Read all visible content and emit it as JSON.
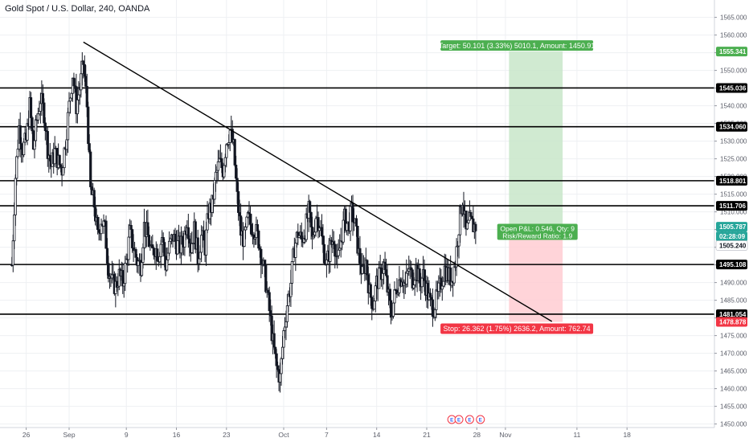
{
  "header": {
    "title": "Gold Spot / U.S. Dollar, 240, OANDA"
  },
  "colors": {
    "up": "#26a69a",
    "down": "#ef5350",
    "candle": "#131722",
    "target": "#4caf50",
    "target_fill": "#c8e6c9",
    "stop": "#f23645",
    "stop_fill": "#ffcdd2",
    "price_tag": "#26a69a",
    "grid": "#eef0f3"
  },
  "chart_data": {
    "type": "candlestick",
    "ylim": [
      1449,
      1569
    ],
    "y_ticks": [
      1450,
      1455,
      1460,
      1465,
      1470,
      1475,
      1480,
      1485,
      1490,
      1495,
      1500,
      1505,
      1510,
      1515,
      1520,
      1525,
      1530,
      1535,
      1540,
      1545,
      1550,
      1555,
      1560,
      1565
    ],
    "y_tick_labels": [
      "1450.000",
      "1455.000",
      "1460.000",
      "1465.000",
      "1470.000",
      "1475.000",
      "1480.000",
      "1485.000",
      "1490.000",
      "1495.000",
      "1500.000",
      "1505.000",
      "1510.000",
      "1515.000",
      "1520.000",
      "1525.000",
      "1530.000",
      "1535.000",
      "1540.000",
      "1545.000",
      "1550.000",
      "1555.000",
      "1560.000",
      "1565.000"
    ],
    "x_ticks": [
      {
        "label": "26",
        "day": -6
      },
      {
        "label": "Sep",
        "day": 0
      },
      {
        "label": "9",
        "day": 8
      },
      {
        "label": "16",
        "day": 15
      },
      {
        "label": "23",
        "day": 22
      },
      {
        "label": "Oct",
        "day": 30
      },
      {
        "label": "7",
        "day": 36
      },
      {
        "label": "14",
        "day": 43
      },
      {
        "label": "21",
        "day": 50
      },
      {
        "label": "28",
        "day": 57
      },
      {
        "label": "Nov",
        "day": 61
      },
      {
        "label": "11",
        "day": 71
      },
      {
        "label": "18",
        "day": 78
      }
    ],
    "price_series": [
      {
        "day": -8.0,
        "price": 1495
      },
      {
        "day": -7.5,
        "price": 1520
      },
      {
        "day": -7.0,
        "price": 1534
      },
      {
        "day": -6.5,
        "price": 1528
      },
      {
        "day": -6.0,
        "price": 1530
      },
      {
        "day": -5.5,
        "price": 1540
      },
      {
        "day": -5.0,
        "price": 1528
      },
      {
        "day": -4.5,
        "price": 1536
      },
      {
        "day": -4.0,
        "price": 1542
      },
      {
        "day": -3.5,
        "price": 1538
      },
      {
        "day": -3.0,
        "price": 1528
      },
      {
        "day": -2.5,
        "price": 1523
      },
      {
        "day": -2.0,
        "price": 1527
      },
      {
        "day": -1.5,
        "price": 1524
      },
      {
        "day": -1.0,
        "price": 1522
      },
      {
        "day": -0.5,
        "price": 1530
      },
      {
        "day": 0.0,
        "price": 1540
      },
      {
        "day": 0.5,
        "price": 1549
      },
      {
        "day": 1.0,
        "price": 1540
      },
      {
        "day": 1.5,
        "price": 1545
      },
      {
        "day": 2.0,
        "price": 1552
      },
      {
        "day": 2.5,
        "price": 1540
      },
      {
        "day": 3.0,
        "price": 1516
      },
      {
        "day": 3.5,
        "price": 1512
      },
      {
        "day": 4.0,
        "price": 1503
      },
      {
        "day": 4.5,
        "price": 1508
      },
      {
        "day": 5.0,
        "price": 1505
      },
      {
        "day": 5.5,
        "price": 1494
      },
      {
        "day": 6.0,
        "price": 1490
      },
      {
        "day": 6.5,
        "price": 1489
      },
      {
        "day": 7.0,
        "price": 1492
      },
      {
        "day": 7.5,
        "price": 1490
      },
      {
        "day": 8.0,
        "price": 1496
      },
      {
        "day": 8.5,
        "price": 1504
      },
      {
        "day": 9.0,
        "price": 1500
      },
      {
        "day": 9.5,
        "price": 1496
      },
      {
        "day": 10.0,
        "price": 1495
      },
      {
        "day": 10.5,
        "price": 1506
      },
      {
        "day": 11.0,
        "price": 1503
      },
      {
        "day": 11.5,
        "price": 1498
      },
      {
        "day": 12.0,
        "price": 1500
      },
      {
        "day": 12.5,
        "price": 1498
      },
      {
        "day": 13.0,
        "price": 1503
      },
      {
        "day": 13.5,
        "price": 1495
      },
      {
        "day": 14.0,
        "price": 1500
      },
      {
        "day": 14.5,
        "price": 1503
      },
      {
        "day": 15.0,
        "price": 1501
      },
      {
        "day": 15.5,
        "price": 1500
      },
      {
        "day": 16.0,
        "price": 1502
      },
      {
        "day": 16.5,
        "price": 1508
      },
      {
        "day": 17.0,
        "price": 1500
      },
      {
        "day": 17.5,
        "price": 1505
      },
      {
        "day": 18.0,
        "price": 1497
      },
      {
        "day": 18.5,
        "price": 1503
      },
      {
        "day": 19.0,
        "price": 1500
      },
      {
        "day": 19.5,
        "price": 1510
      },
      {
        "day": 20.0,
        "price": 1512
      },
      {
        "day": 20.5,
        "price": 1520
      },
      {
        "day": 21.0,
        "price": 1524
      },
      {
        "day": 21.5,
        "price": 1522
      },
      {
        "day": 22.0,
        "price": 1530
      },
      {
        "day": 22.5,
        "price": 1533
      },
      {
        "day": 23.0,
        "price": 1528
      },
      {
        "day": 23.5,
        "price": 1514
      },
      {
        "day": 24.0,
        "price": 1504
      },
      {
        "day": 24.5,
        "price": 1502
      },
      {
        "day": 25.0,
        "price": 1508
      },
      {
        "day": 25.5,
        "price": 1506
      },
      {
        "day": 26.0,
        "price": 1505
      },
      {
        "day": 26.5,
        "price": 1502
      },
      {
        "day": 27.0,
        "price": 1496
      },
      {
        "day": 27.5,
        "price": 1490
      },
      {
        "day": 28.0,
        "price": 1482
      },
      {
        "day": 28.5,
        "price": 1473
      },
      {
        "day": 29.0,
        "price": 1466
      },
      {
        "day": 29.5,
        "price": 1463
      },
      {
        "day": 30.0,
        "price": 1476
      },
      {
        "day": 30.5,
        "price": 1484
      },
      {
        "day": 31.0,
        "price": 1490
      },
      {
        "day": 31.5,
        "price": 1500
      },
      {
        "day": 32.0,
        "price": 1504
      },
      {
        "day": 32.5,
        "price": 1502
      },
      {
        "day": 33.0,
        "price": 1505
      },
      {
        "day": 33.5,
        "price": 1510
      },
      {
        "day": 34.0,
        "price": 1502
      },
      {
        "day": 34.5,
        "price": 1509
      },
      {
        "day": 35.0,
        "price": 1507
      },
      {
        "day": 35.5,
        "price": 1500
      },
      {
        "day": 36.0,
        "price": 1495
      },
      {
        "day": 36.5,
        "price": 1500
      },
      {
        "day": 37.0,
        "price": 1503
      },
      {
        "day": 37.5,
        "price": 1495
      },
      {
        "day": 38.0,
        "price": 1502
      },
      {
        "day": 38.5,
        "price": 1508
      },
      {
        "day": 39.0,
        "price": 1506
      },
      {
        "day": 39.5,
        "price": 1510
      },
      {
        "day": 40.0,
        "price": 1506
      },
      {
        "day": 40.5,
        "price": 1498
      },
      {
        "day": 41.0,
        "price": 1492
      },
      {
        "day": 41.5,
        "price": 1496
      },
      {
        "day": 42.0,
        "price": 1487
      },
      {
        "day": 42.5,
        "price": 1484
      },
      {
        "day": 43.0,
        "price": 1490
      },
      {
        "day": 43.5,
        "price": 1492
      },
      {
        "day": 44.0,
        "price": 1495
      },
      {
        "day": 44.5,
        "price": 1488
      },
      {
        "day": 45.0,
        "price": 1481
      },
      {
        "day": 45.5,
        "price": 1486
      },
      {
        "day": 46.0,
        "price": 1490
      },
      {
        "day": 46.5,
        "price": 1492
      },
      {
        "day": 47.0,
        "price": 1489
      },
      {
        "day": 47.5,
        "price": 1494
      },
      {
        "day": 48.0,
        "price": 1491
      },
      {
        "day": 48.5,
        "price": 1494
      },
      {
        "day": 49.0,
        "price": 1490
      },
      {
        "day": 49.5,
        "price": 1492
      },
      {
        "day": 50.0,
        "price": 1488
      },
      {
        "day": 50.5,
        "price": 1484
      },
      {
        "day": 51.0,
        "price": 1483
      },
      {
        "day": 51.5,
        "price": 1486
      },
      {
        "day": 52.0,
        "price": 1490
      },
      {
        "day": 52.5,
        "price": 1494
      },
      {
        "day": 53.0,
        "price": 1492
      },
      {
        "day": 53.5,
        "price": 1491
      },
      {
        "day": 54.0,
        "price": 1496
      },
      {
        "day": 54.5,
        "price": 1506
      },
      {
        "day": 55.0,
        "price": 1514
      },
      {
        "day": 55.5,
        "price": 1504
      },
      {
        "day": 56.0,
        "price": 1507
      },
      {
        "day": 56.5,
        "price": 1506
      },
      {
        "day": 57.0,
        "price": 1506
      }
    ],
    "horizontal_levels": [
      1545.036,
      1534.06,
      1518.801,
      1511.706,
      1495.108,
      1481.054
    ],
    "trendline": {
      "x1": 2.0,
      "y1": 1558,
      "x2": 67.5,
      "y2": 1479
    },
    "position": {
      "entry": 1505.24,
      "target": 1555.341,
      "stop": 1478.878,
      "x_start": 61.5,
      "x_end": 69.0,
      "target_label": "Target: 50.101 (3.33%) 5010.1, Amount: 1450.91",
      "stop_label": "Stop: 26.362 (1.75%) 2636.2, Amount: 762.74",
      "pnl_label": "Open P&L: 0.546, Qty: 9",
      "rr_label": "Risk/Reward Ratio: 1.9"
    },
    "axis_tags": [
      {
        "value": 1555.341,
        "label": "1555.341",
        "kind": "target"
      },
      {
        "value": 1545.036,
        "label": "1545.036",
        "kind": "level"
      },
      {
        "value": 1534.06,
        "label": "1534.060",
        "kind": "level"
      },
      {
        "value": 1518.801,
        "label": "1518.801",
        "kind": "level"
      },
      {
        "value": 1511.706,
        "label": "1511.706",
        "kind": "level"
      },
      {
        "value": 1505.787,
        "label": "1505.787",
        "kind": "price"
      },
      {
        "value": 1505.787,
        "label": "02:28:09",
        "kind": "timer"
      },
      {
        "value": 1505.24,
        "label": "1505.240",
        "kind": "entry"
      },
      {
        "value": 1495.108,
        "label": "1495.108",
        "kind": "level"
      },
      {
        "value": 1481.054,
        "label": "1481.054",
        "kind": "level"
      },
      {
        "value": 1478.878,
        "label": "1478.878",
        "kind": "stop"
      }
    ],
    "event_markers": [
      {
        "day": 53.5,
        "label": "E"
      },
      {
        "day": 54.5,
        "label": "E"
      },
      {
        "day": 56.0,
        "label": "E"
      },
      {
        "day": 57.5,
        "label": "E"
      }
    ]
  }
}
